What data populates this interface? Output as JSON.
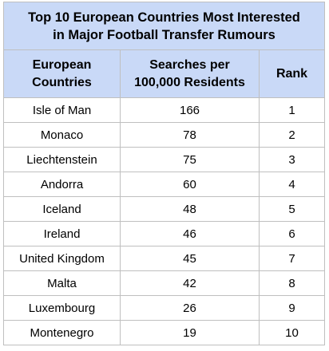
{
  "table": {
    "title_line1": "Top 10 European Countries Most Interested",
    "title_line2": "in Major Football Transfer Rumours",
    "columns": [
      {
        "line1": "European",
        "line2": "Countries"
      },
      {
        "line1": "Searches per",
        "line2": "100,000 Residents"
      },
      {
        "line1": "Rank",
        "line2": ""
      }
    ],
    "rows": [
      {
        "country": "Isle of Man",
        "searches": "166",
        "rank": "1"
      },
      {
        "country": "Monaco",
        "searches": "78",
        "rank": "2"
      },
      {
        "country": "Liechtenstein",
        "searches": "75",
        "rank": "3"
      },
      {
        "country": "Andorra",
        "searches": "60",
        "rank": "4"
      },
      {
        "country": "Iceland",
        "searches": "48",
        "rank": "5"
      },
      {
        "country": "Ireland",
        "searches": "46",
        "rank": "6"
      },
      {
        "country": "United Kingdom",
        "searches": "45",
        "rank": "7"
      },
      {
        "country": "Malta",
        "searches": "42",
        "rank": "8"
      },
      {
        "country": "Luxembourg",
        "searches": "26",
        "rank": "9"
      },
      {
        "country": "Montenegro",
        "searches": "19",
        "rank": "10"
      }
    ],
    "header_bg": "#c9d9f7",
    "border_color": "#bfbfbf"
  }
}
